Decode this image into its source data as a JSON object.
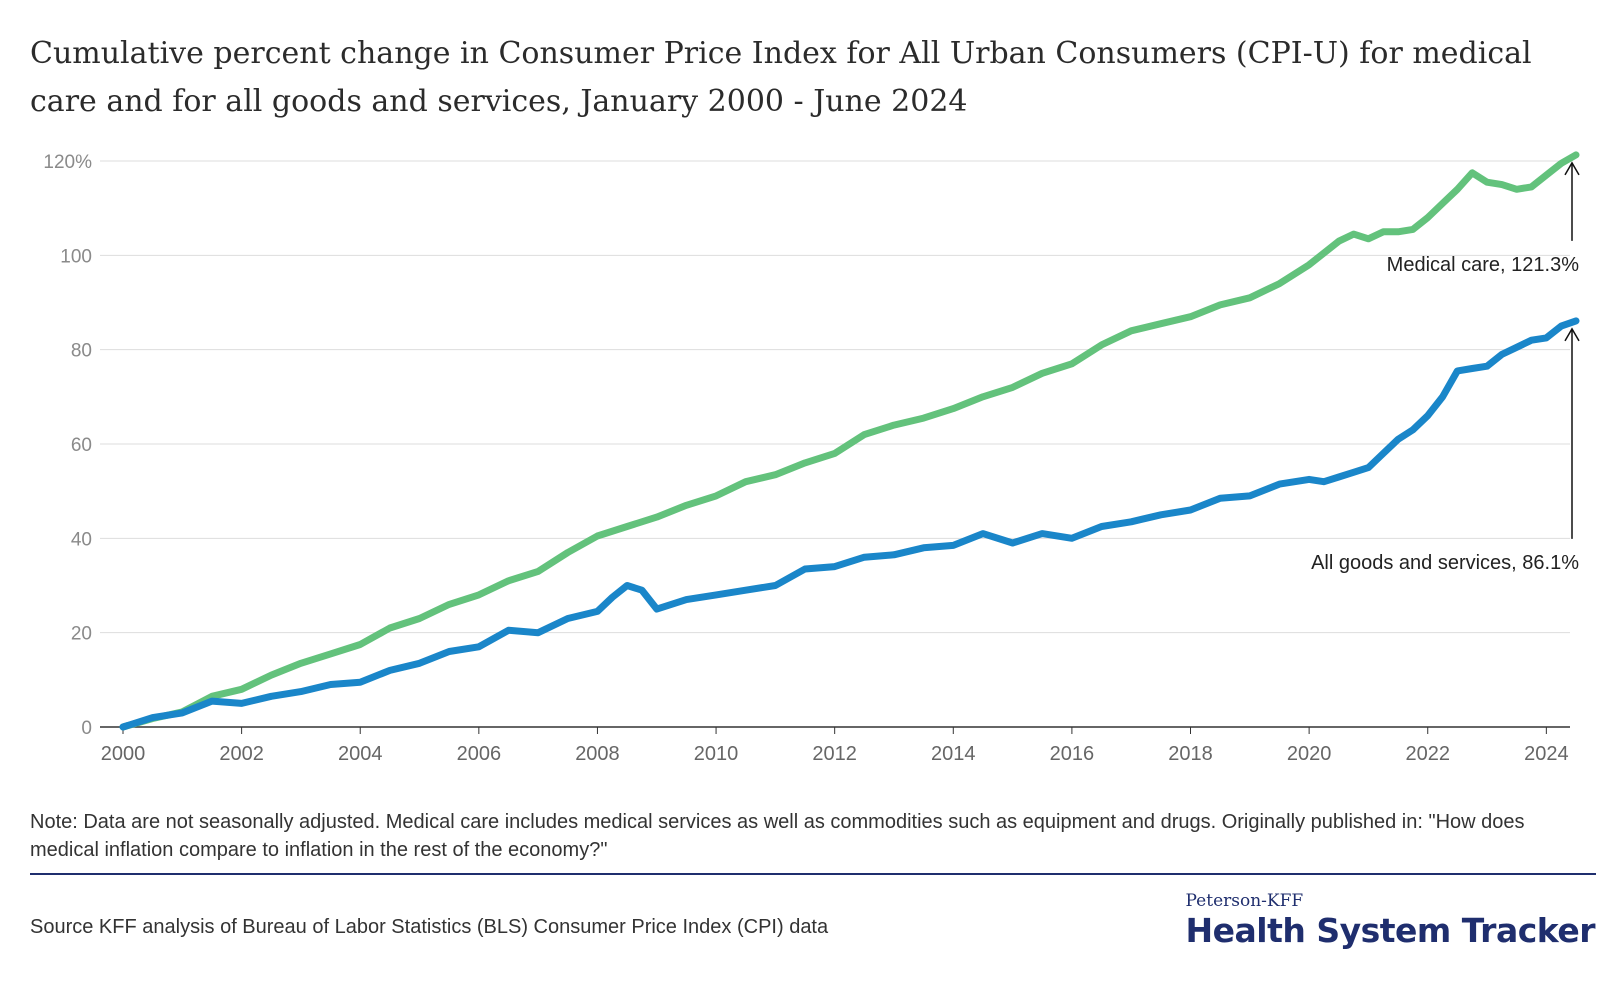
{
  "title": "Cumulative percent change in Consumer Price Index for All Urban Consumers (CPI-U) for medical care and for all goods and services, January 2000 - June 2024",
  "note": "Note: Data are not seasonally adjusted. Medical care includes medical services as well as commodities such as equipment and drugs. Originally published in: \"How does medical inflation compare to inflation in the rest of the economy?\"",
  "source": "Source KFF analysis of Bureau of Labor Statistics (BLS) Consumer Price Index (CPI) data",
  "brand": {
    "small": "Peterson-KFF",
    "big": "Health System Tracker"
  },
  "colors": {
    "medical": "#63c27c",
    "all": "#1a86c9",
    "grid": "#dddddd",
    "axis": "#333333",
    "tick": "#8a8a8a",
    "brand": "#1f2e6e"
  },
  "chart_data": {
    "type": "line",
    "title": "Cumulative percent change in Consumer Price Index for All Urban Consumers (CPI-U) for medical care and for all goods and services, January 2000 - June 2024",
    "xlim": [
      2000,
      2024.5
    ],
    "ylim": [
      0,
      120
    ],
    "x_ticks": [
      2000,
      2002,
      2004,
      2006,
      2008,
      2010,
      2012,
      2014,
      2016,
      2018,
      2020,
      2022,
      2024
    ],
    "y_ticks": [
      0,
      20,
      40,
      60,
      80,
      100,
      120
    ],
    "y_tick_labels": [
      "0",
      "20",
      "40",
      "60",
      "80",
      "100",
      "120%"
    ],
    "grid": true,
    "series": [
      {
        "name": "Medical care",
        "color": "#63c27c",
        "points": [
          [
            2000.0,
            0.0
          ],
          [
            2000.5,
            1.8
          ],
          [
            2001.0,
            3.2
          ],
          [
            2001.5,
            6.5
          ],
          [
            2002.0,
            8.0
          ],
          [
            2002.5,
            11.0
          ],
          [
            2003.0,
            13.5
          ],
          [
            2003.5,
            15.5
          ],
          [
            2004.0,
            17.5
          ],
          [
            2004.5,
            21.0
          ],
          [
            2005.0,
            23.0
          ],
          [
            2005.5,
            26.0
          ],
          [
            2006.0,
            28.0
          ],
          [
            2006.5,
            31.0
          ],
          [
            2007.0,
            33.0
          ],
          [
            2007.5,
            37.0
          ],
          [
            2008.0,
            40.5
          ],
          [
            2008.5,
            42.5
          ],
          [
            2009.0,
            44.5
          ],
          [
            2009.5,
            47.0
          ],
          [
            2010.0,
            49.0
          ],
          [
            2010.5,
            52.0
          ],
          [
            2011.0,
            53.5
          ],
          [
            2011.5,
            56.0
          ],
          [
            2012.0,
            58.0
          ],
          [
            2012.5,
            62.0
          ],
          [
            2013.0,
            64.0
          ],
          [
            2013.5,
            65.5
          ],
          [
            2014.0,
            67.5
          ],
          [
            2014.5,
            70.0
          ],
          [
            2015.0,
            72.0
          ],
          [
            2015.5,
            75.0
          ],
          [
            2016.0,
            77.0
          ],
          [
            2016.5,
            81.0
          ],
          [
            2017.0,
            84.0
          ],
          [
            2017.5,
            85.5
          ],
          [
            2018.0,
            87.0
          ],
          [
            2018.5,
            89.5
          ],
          [
            2019.0,
            91.0
          ],
          [
            2019.5,
            94.0
          ],
          [
            2020.0,
            98.0
          ],
          [
            2020.5,
            103.0
          ],
          [
            2020.75,
            104.5
          ],
          [
            2021.0,
            103.5
          ],
          [
            2021.25,
            105.0
          ],
          [
            2021.5,
            105.0
          ],
          [
            2021.75,
            105.5
          ],
          [
            2022.0,
            108.0
          ],
          [
            2022.25,
            111.0
          ],
          [
            2022.5,
            114.0
          ],
          [
            2022.75,
            117.5
          ],
          [
            2023.0,
            115.5
          ],
          [
            2023.25,
            115.0
          ],
          [
            2023.5,
            114.0
          ],
          [
            2023.75,
            114.5
          ],
          [
            2024.0,
            117.0
          ],
          [
            2024.25,
            119.5
          ],
          [
            2024.5,
            121.3
          ]
        ]
      },
      {
        "name": "All goods and services",
        "color": "#1a86c9",
        "points": [
          [
            2000.0,
            0.0
          ],
          [
            2000.5,
            2.0
          ],
          [
            2001.0,
            3.0
          ],
          [
            2001.5,
            5.5
          ],
          [
            2002.0,
            5.0
          ],
          [
            2002.5,
            6.5
          ],
          [
            2003.0,
            7.5
          ],
          [
            2003.5,
            9.0
          ],
          [
            2004.0,
            9.5
          ],
          [
            2004.5,
            12.0
          ],
          [
            2005.0,
            13.5
          ],
          [
            2005.5,
            16.0
          ],
          [
            2006.0,
            17.0
          ],
          [
            2006.5,
            20.5
          ],
          [
            2007.0,
            20.0
          ],
          [
            2007.5,
            23.0
          ],
          [
            2008.0,
            24.5
          ],
          [
            2008.25,
            27.5
          ],
          [
            2008.5,
            30.0
          ],
          [
            2008.75,
            29.0
          ],
          [
            2009.0,
            25.0
          ],
          [
            2009.5,
            27.0
          ],
          [
            2010.0,
            28.0
          ],
          [
            2010.5,
            29.0
          ],
          [
            2011.0,
            30.0
          ],
          [
            2011.5,
            33.5
          ],
          [
            2012.0,
            34.0
          ],
          [
            2012.5,
            36.0
          ],
          [
            2013.0,
            36.5
          ],
          [
            2013.5,
            38.0
          ],
          [
            2014.0,
            38.5
          ],
          [
            2014.5,
            41.0
          ],
          [
            2015.0,
            39.0
          ],
          [
            2015.5,
            41.0
          ],
          [
            2016.0,
            40.0
          ],
          [
            2016.5,
            42.5
          ],
          [
            2017.0,
            43.5
          ],
          [
            2017.5,
            45.0
          ],
          [
            2018.0,
            46.0
          ],
          [
            2018.5,
            48.5
          ],
          [
            2019.0,
            49.0
          ],
          [
            2019.5,
            51.5
          ],
          [
            2020.0,
            52.5
          ],
          [
            2020.25,
            52.0
          ],
          [
            2020.5,
            53.0
          ],
          [
            2020.75,
            54.0
          ],
          [
            2021.0,
            55.0
          ],
          [
            2021.25,
            58.0
          ],
          [
            2021.5,
            61.0
          ],
          [
            2021.75,
            63.0
          ],
          [
            2022.0,
            66.0
          ],
          [
            2022.25,
            70.0
          ],
          [
            2022.5,
            75.5
          ],
          [
            2022.75,
            76.0
          ],
          [
            2023.0,
            76.5
          ],
          [
            2023.25,
            79.0
          ],
          [
            2023.5,
            80.5
          ],
          [
            2023.75,
            82.0
          ],
          [
            2024.0,
            82.5
          ],
          [
            2024.25,
            85.0
          ],
          [
            2024.5,
            86.1
          ]
        ]
      }
    ],
    "annotations": [
      {
        "text": "Medical care, 121.3%",
        "series": "Medical care",
        "x": 2024.5,
        "y": 121.3
      },
      {
        "text": "All goods and services, 86.1%",
        "series": "All goods and services",
        "x": 2024.5,
        "y": 86.1
      }
    ]
  }
}
